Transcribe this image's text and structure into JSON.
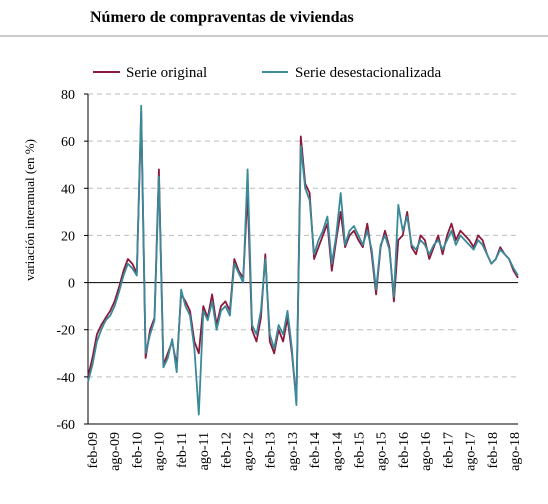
{
  "chart_data": {
    "type": "line",
    "title": "Número de compraventas de viviendas",
    "ylabel": "variación interanual (en %)",
    "xlabel": "",
    "ylim": [
      -60,
      80
    ],
    "yticks": [
      80,
      60,
      40,
      20,
      0,
      -20,
      -40,
      -60
    ],
    "grid": true,
    "legend_position": "top",
    "x_tick_labels": [
      "feb-09",
      "ago-09",
      "feb-10",
      "ago-10",
      "feb-11",
      "ago-11",
      "feb-12",
      "ago-12",
      "feb-13",
      "ago-13",
      "feb-14",
      "ago-14",
      "feb-15",
      "ago-15",
      "feb-16",
      "ago-16",
      "feb-17",
      "ago-17",
      "feb-18",
      "ago-18"
    ],
    "x_start": "2009-01",
    "x_end": "2018-09",
    "series": [
      {
        "name": "Serie original",
        "color": "#8b1a3c",
        "values": [
          -40,
          -32,
          -22,
          -18,
          -15,
          -12,
          -8,
          -2,
          5,
          10,
          8,
          4,
          72,
          -32,
          -20,
          -15,
          48,
          -35,
          -30,
          -25,
          -35,
          -5,
          -8,
          -12,
          -25,
          -30,
          -10,
          -15,
          -5,
          -18,
          -10,
          -8,
          -12,
          10,
          5,
          2,
          38,
          -20,
          -25,
          -15,
          12,
          -25,
          -30,
          -20,
          -25,
          -15,
          -30,
          -50,
          62,
          42,
          38,
          10,
          15,
          20,
          25,
          5,
          18,
          30,
          15,
          20,
          22,
          18,
          15,
          25,
          12,
          -5,
          15,
          22,
          15,
          -8,
          18,
          20,
          30,
          15,
          12,
          20,
          18,
          10,
          15,
          20,
          12,
          20,
          25,
          18,
          22,
          20,
          18,
          15,
          20,
          18,
          12,
          8,
          10,
          15,
          12,
          10,
          5,
          2
        ]
      },
      {
        "name": "Serie desestacionalizada",
        "color": "#3a8a9a",
        "values": [
          -42,
          -35,
          -25,
          -20,
          -16,
          -14,
          -10,
          -4,
          3,
          8,
          6,
          3,
          75,
          -30,
          -22,
          -16,
          45,
          -36,
          -32,
          -24,
          -38,
          -3,
          -10,
          -14,
          -28,
          -56,
          -12,
          -16,
          -8,
          -20,
          -12,
          -10,
          -14,
          8,
          4,
          0,
          48,
          -18,
          -22,
          -12,
          10,
          -22,
          -28,
          -18,
          -22,
          -12,
          -28,
          -52,
          58,
          40,
          35,
          12,
          18,
          22,
          28,
          8,
          20,
          38,
          16,
          22,
          24,
          20,
          16,
          22,
          14,
          -3,
          16,
          20,
          14,
          -6,
          33,
          22,
          28,
          16,
          14,
          18,
          16,
          12,
          16,
          18,
          14,
          18,
          22,
          16,
          20,
          18,
          16,
          14,
          18,
          16,
          12,
          8,
          10,
          14,
          12,
          10,
          6,
          3
        ]
      }
    ]
  }
}
